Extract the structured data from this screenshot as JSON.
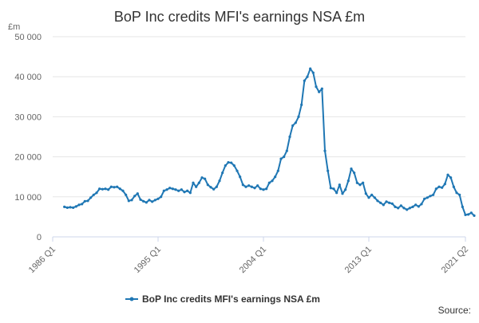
{
  "chart_data": {
    "type": "line",
    "title": "BoP Inc credits MFI's earnings NSA £m",
    "ylabel": "£m",
    "xlabel": "",
    "ylim": [
      0,
      50000
    ],
    "yticks": [
      0,
      10000,
      20000,
      30000,
      40000,
      50000
    ],
    "ytick_labels": [
      "0",
      "10 000",
      "20 000",
      "30 000",
      "40 000",
      "50 000"
    ],
    "xtick_labels": [
      "1986 Q1",
      "1995 Q1",
      "2004 Q1",
      "2013 Q1",
      "2021 Q2"
    ],
    "xtick_index": [
      0,
      36,
      72,
      108,
      141
    ],
    "legend": "BoP Inc credits MFI's earnings NSA £m",
    "legend_position": "bottom-center",
    "series_color": "#1f77b4",
    "source_label": "Source:",
    "series": [
      {
        "name": "BoP Inc credits MFI's earnings NSA £m",
        "start_index": 4,
        "values": [
          7500,
          7300,
          7400,
          7300,
          7600,
          8000,
          8200,
          8900,
          9000,
          9800,
          10500,
          11000,
          12000,
          11900,
          12000,
          11800,
          12500,
          12400,
          12500,
          12000,
          11500,
          10500,
          9000,
          9200,
          10200,
          10800,
          9300,
          8900,
          8600,
          9200,
          8800,
          9200,
          9500,
          10000,
          11500,
          11800,
          12200,
          12000,
          11800,
          11500,
          11800,
          11200,
          11500,
          11000,
          13500,
          12500,
          13500,
          14800,
          14500,
          13000,
          12400,
          11900,
          12500,
          14000,
          16000,
          17800,
          18600,
          18500,
          17800,
          16500,
          15000,
          13000,
          12500,
          12800,
          12500,
          12200,
          12800,
          12000,
          11800,
          12000,
          13500,
          14000,
          15000,
          16500,
          19500,
          20000,
          21500,
          25000,
          27800,
          28500,
          30000,
          33000,
          39000,
          40000,
          42000,
          41000,
          37500,
          36200,
          37000,
          21500,
          16500,
          12200,
          12000,
          11000,
          13000,
          10800,
          11800,
          14000,
          17000,
          16000,
          13500,
          13000,
          13500,
          10800,
          9800,
          10500,
          9800,
          9000,
          8500,
          8000,
          8800,
          8500,
          8300,
          7500,
          7200,
          7800,
          7200,
          6800,
          7200,
          7500,
          8000,
          7600,
          8200,
          9500,
          9800,
          10200,
          10500,
          12000,
          12500,
          12300,
          13200,
          15500,
          14800,
          12500,
          11000,
          10500,
          7500,
          5500,
          5600,
          6000,
          5300
        ]
      }
    ]
  }
}
